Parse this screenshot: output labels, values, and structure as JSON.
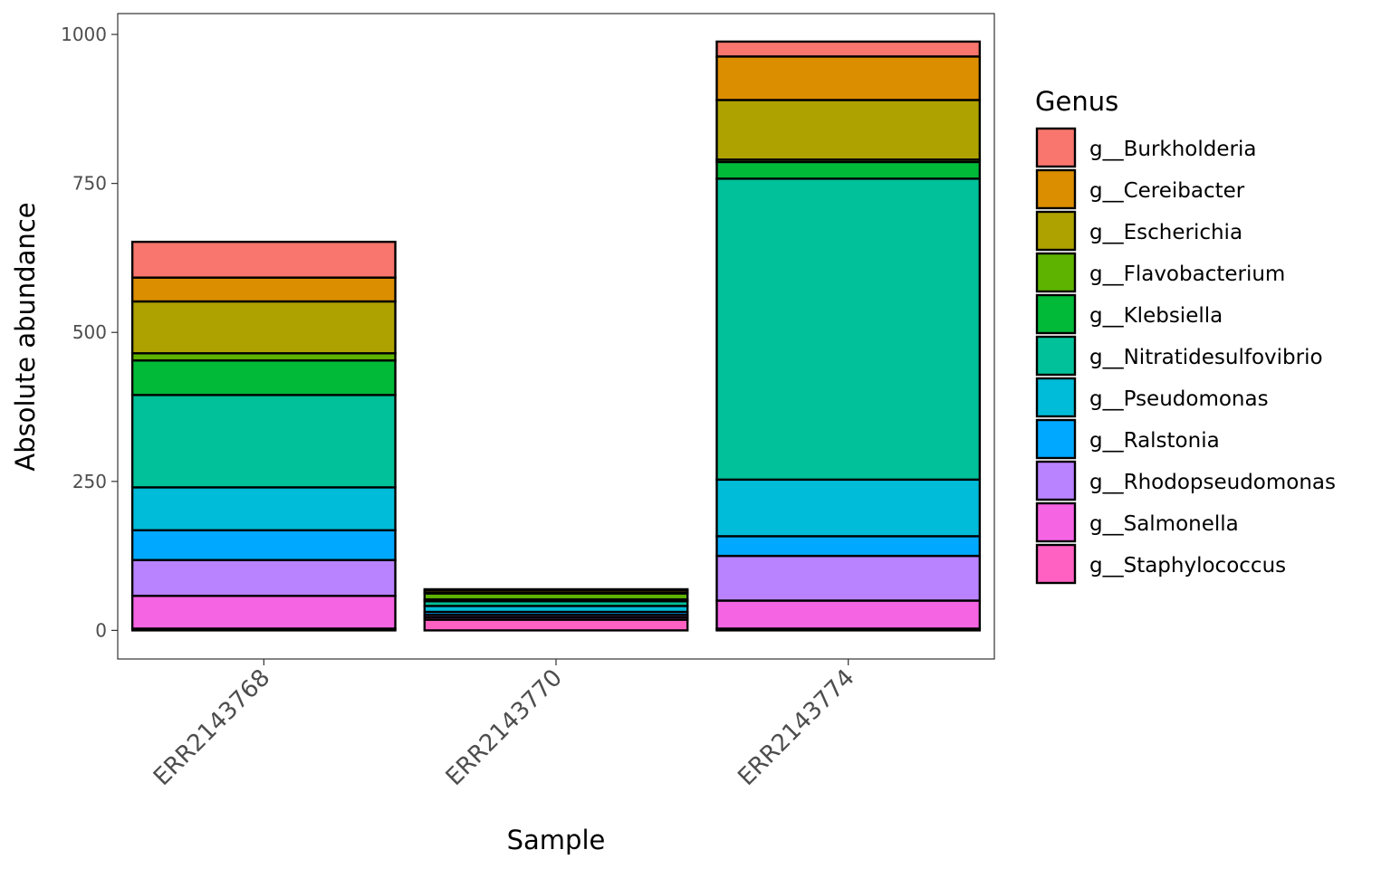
{
  "chart_data": {
    "type": "bar",
    "stacked": true,
    "title": "",
    "xlabel": "Sample",
    "ylabel": "Absolute abundance",
    "ylim": [
      -48,
      1035
    ],
    "yticks": [
      0,
      250,
      500,
      750,
      1000
    ],
    "categories": [
      "ERR2143768",
      "ERR2143770",
      "ERR2143774"
    ],
    "legend_title": "Genus",
    "legend_position": "right",
    "grid": false,
    "series": [
      {
        "name": "g__Staphylococcus",
        "color": "#FF61C3",
        "values": [
          3,
          18,
          3
        ]
      },
      {
        "name": "g__Salmonella",
        "color": "#F564E3",
        "values": [
          55,
          4,
          47
        ]
      },
      {
        "name": "g__Rhodopseudomonas",
        "color": "#B983FF",
        "values": [
          60,
          4,
          75
        ]
      },
      {
        "name": "g__Ralstonia",
        "color": "#00A9FF",
        "values": [
          50,
          5,
          33
        ]
      },
      {
        "name": "g__Pseudomonas",
        "color": "#00BCD8",
        "values": [
          72,
          10,
          95
        ]
      },
      {
        "name": "g__Nitratidesulfovibrio",
        "color": "#00C19A",
        "values": [
          155,
          8,
          505
        ]
      },
      {
        "name": "g__Klebsiella",
        "color": "#00BA38",
        "values": [
          58,
          3,
          28
        ]
      },
      {
        "name": "g__Flavobacterium",
        "color": "#5EB300",
        "values": [
          12,
          10,
          4
        ]
      },
      {
        "name": "g__Escherichia",
        "color": "#AEA200",
        "values": [
          87,
          1,
          100
        ]
      },
      {
        "name": "g__Cereibacter",
        "color": "#DB8E00",
        "values": [
          40,
          4,
          73
        ]
      },
      {
        "name": "g__Burkholderia",
        "color": "#F8766D",
        "values": [
          60,
          2,
          25
        ]
      }
    ]
  }
}
